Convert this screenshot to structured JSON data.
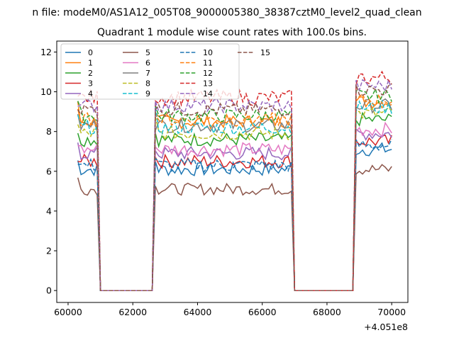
{
  "chart_data": {
    "type": "line",
    "suptitle": "n file: modeM0/AS1A12_005T08_9000005380_38387cztM0_level2_quad_clean",
    "title": "Quadrant 1 module wise count rates with 100.0s bins.",
    "xlabel": "",
    "ylabel": "",
    "x_offset_label": "+4.051e8",
    "xlim": [
      59650,
      70500
    ],
    "ylim": [
      -0.6,
      12.55
    ],
    "xticks": [
      60000,
      62000,
      64000,
      66000,
      68000,
      70000
    ],
    "yticks": [
      0,
      2,
      4,
      6,
      8,
      10,
      12
    ],
    "grid": false,
    "legend": {
      "placement": "upper-left",
      "columns": 4
    },
    "time_range": [
      60300,
      70000
    ],
    "bin_width": 100,
    "gti": [
      [
        60300,
        60900
      ],
      [
        62700,
        66900
      ],
      [
        68900,
        70000
      ]
    ],
    "series": [
      {
        "name": "0",
        "color": "#1f77b4",
        "style": "solid",
        "level": 6.1,
        "spread": 0.35
      },
      {
        "name": "1",
        "color": "#ff7f0e",
        "style": "solid",
        "level": 8.5,
        "spread": 0.35
      },
      {
        "name": "2",
        "color": "#2ca02c",
        "style": "solid",
        "level": 7.6,
        "spread": 0.35
      },
      {
        "name": "3",
        "color": "#d62728",
        "style": "solid",
        "level": 6.5,
        "spread": 0.35
      },
      {
        "name": "4",
        "color": "#9467bd",
        "style": "solid",
        "level": 6.9,
        "spread": 0.35
      },
      {
        "name": "5",
        "color": "#8c564b",
        "style": "solid",
        "level": 5.1,
        "spread": 0.3
      },
      {
        "name": "6",
        "color": "#e377c2",
        "style": "solid",
        "level": 7.1,
        "spread": 0.35
      },
      {
        "name": "7",
        "color": "#7f7f7f",
        "style": "solid",
        "level": 8.3,
        "spread": 0.35
      },
      {
        "name": "8",
        "color": "#bcbd22",
        "style": "dashed",
        "level": 7.9,
        "spread": 0.35
      },
      {
        "name": "9",
        "color": "#17becf",
        "style": "dashed",
        "level": 8.2,
        "spread": 0.35
      },
      {
        "name": "10",
        "color": "#1f77b4",
        "style": "dashed",
        "level": 6.3,
        "spread": 0.35
      },
      {
        "name": "11",
        "color": "#ff7f0e",
        "style": "dashed",
        "level": 8.6,
        "spread": 0.35
      },
      {
        "name": "12",
        "color": "#2ca02c",
        "style": "dashed",
        "level": 8.8,
        "spread": 0.35
      },
      {
        "name": "13",
        "color": "#d62728",
        "style": "dashed",
        "level": 9.7,
        "spread": 0.4
      },
      {
        "name": "14",
        "color": "#9467bd",
        "style": "dashed",
        "level": 9.3,
        "spread": 0.35
      },
      {
        "name": "15",
        "color": "#8c564b",
        "style": "dashed",
        "level": 9.1,
        "spread": 0.35
      }
    ]
  }
}
